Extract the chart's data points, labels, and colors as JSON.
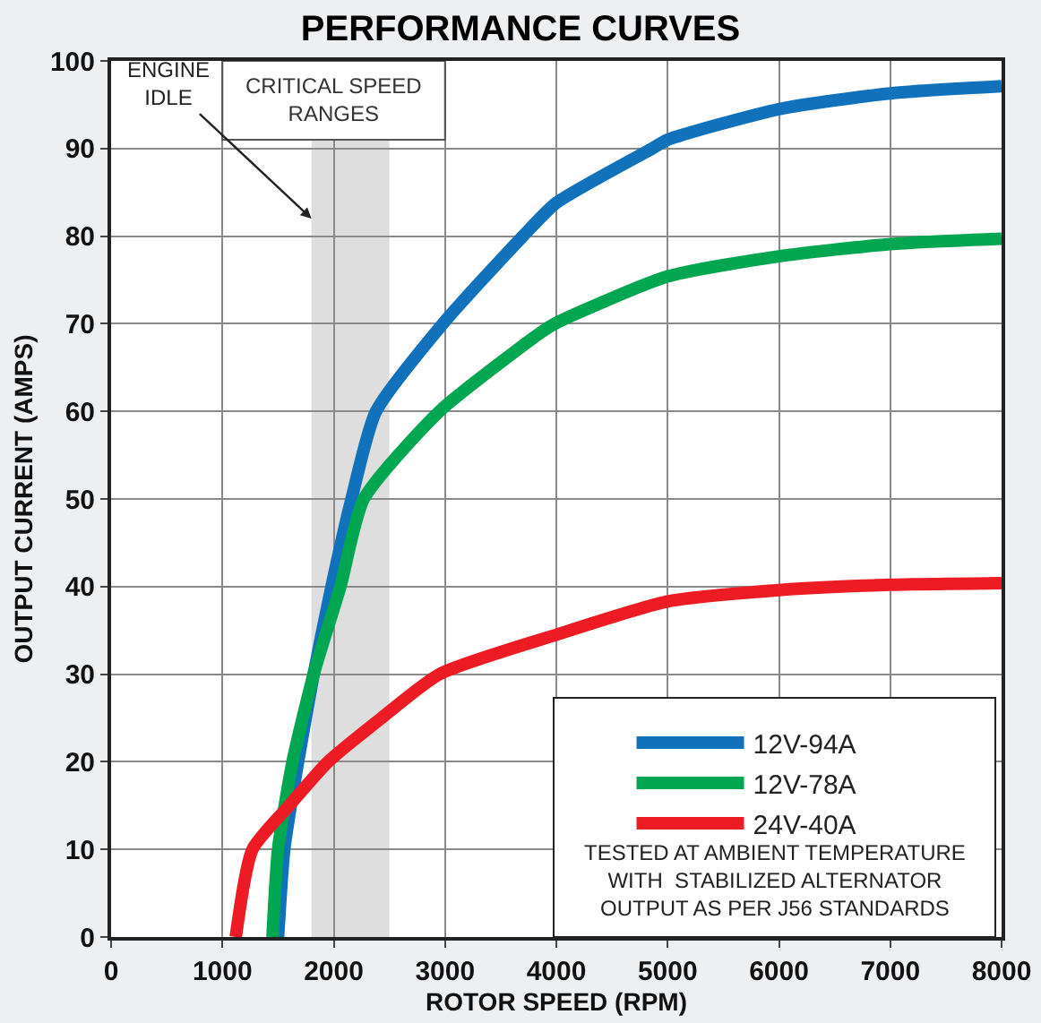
{
  "chart_data": {
    "type": "line",
    "title": "PERFORMANCE CURVES",
    "xlabel": "ROTOR SPEED (RPM)",
    "ylabel": "OUTPUT CURRENT (AMPS)",
    "xlim": [
      0,
      8000
    ],
    "xticks": [
      0,
      1000,
      2000,
      3000,
      4000,
      5000,
      6000,
      7000,
      8000
    ],
    "ylim": [
      0,
      100
    ],
    "yticks": [
      0,
      10,
      20,
      30,
      40,
      50,
      60,
      70,
      80,
      90,
      100
    ],
    "grid": true,
    "legend": "bottom right",
    "marker": "none",
    "line_style": "solid",
    "series": [
      {
        "name": "12V-94A",
        "color": "#1172bb",
        "x": [
          1500,
          1556,
          1680,
          1820,
          1980,
          2160,
          2380,
          2980,
          3700,
          4000,
          4860,
          5000,
          6000,
          7000,
          8000
        ],
        "values": [
          0,
          10,
          20,
          30,
          40,
          50,
          60,
          70,
          80,
          83.8,
          90,
          91,
          94.5,
          96.3,
          97.1
        ]
      },
      {
        "name": "12V-78A",
        "color": "#00a650",
        "x": [
          1450,
          1500,
          1630,
          1820,
          2060,
          2270,
          2950,
          3860,
          4000,
          5000,
          6000,
          7000,
          8000
        ],
        "values": [
          0,
          10,
          20,
          30,
          40,
          50,
          60,
          69,
          70.1,
          75.4,
          77.7,
          79.1,
          79.7
        ]
      },
      {
        "name": "24V-40A",
        "color": "#ed1c24",
        "x": [
          1120,
          1270,
          1600,
          1950,
          2430,
          2950,
          4000,
          5000,
          6000,
          7000,
          8000
        ],
        "values": [
          0,
          10,
          15,
          20,
          25,
          30,
          34.5,
          38.3,
          39.6,
          40.2,
          40.4
        ]
      }
    ],
    "bands": [
      {
        "axis": "x",
        "from": 1800,
        "to": 2500,
        "label": "CRITICAL SPEED RANGES",
        "color": "#c8c8c8"
      }
    ],
    "annotations": [
      {
        "text": "ENGINE IDLE",
        "x": 1800,
        "y": 82
      },
      "TESTED AT AMBIENT TEMPERATURE WITH  STABILIZED ALTERNATOR OUTPUT AS PER J56 STANDARDS"
    ]
  }
}
